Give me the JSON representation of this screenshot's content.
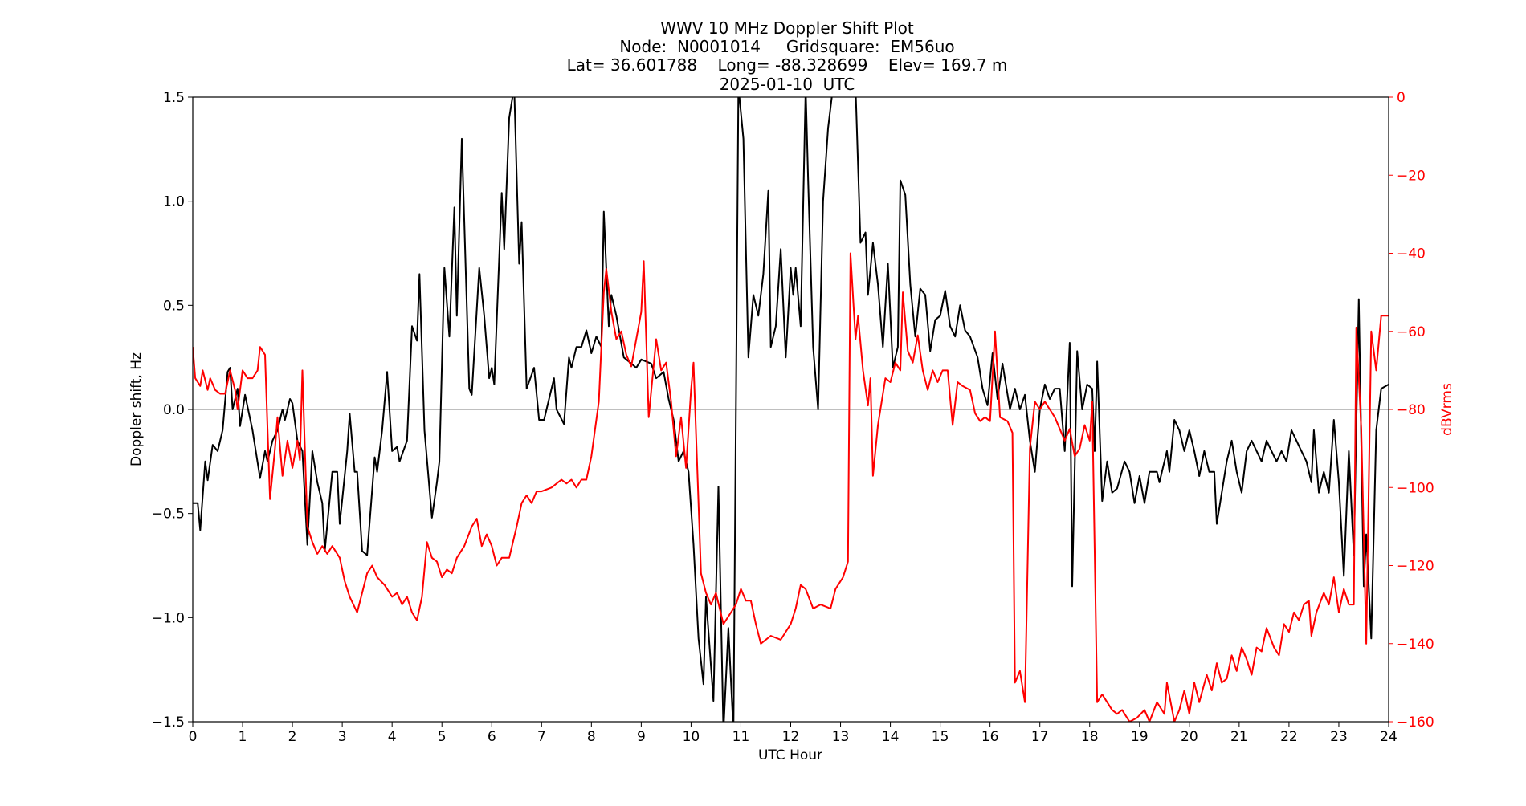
{
  "chart_data": {
    "type": "line",
    "title_lines": [
      "WWV 10 MHz Doppler Shift Plot",
      "Node:  N0001014     Gridsquare:  EM56uo",
      "Lat= 36.601788    Long= -88.328699    Elev= 169.7 m",
      "2025-01-10  UTC"
    ],
    "xlabel": "UTC Hour",
    "ylabel": "Doppler shift, Hz",
    "y2label": "dBVrms",
    "xlim": [
      0,
      24
    ],
    "ylim": [
      -1.5,
      1.5
    ],
    "y2lim": [
      -160,
      0
    ],
    "xticks": [
      "0",
      "1",
      "2",
      "3",
      "4",
      "5",
      "6",
      "7",
      "8",
      "9",
      "10",
      "11",
      "12",
      "13",
      "14",
      "15",
      "16",
      "17",
      "18",
      "19",
      "20",
      "21",
      "22",
      "23",
      "24"
    ],
    "yticks": [
      "1.5",
      "1.0",
      "0.5",
      "0.0",
      "−0.5",
      "−1.0",
      "−1.5"
    ],
    "y2ticks": [
      "0",
      "−20",
      "−40",
      "−60",
      "−80",
      "−100",
      "−120",
      "−140",
      "−160"
    ],
    "zero_line": true,
    "grid": false,
    "colors": {
      "doppler": "#000000",
      "power": "#ff0000",
      "zero_line": "#999999"
    },
    "series": [
      {
        "axis": "left",
        "color": "#000000",
        "x": [
          0,
          0.1,
          0.15,
          0.25,
          0.3,
          0.4,
          0.5,
          0.6,
          0.7,
          0.75,
          0.8,
          0.9,
          0.95,
          1.05,
          1.2,
          1.35,
          1.45,
          1.5,
          1.6,
          1.7,
          1.8,
          1.85,
          1.95,
          2.0,
          2.1,
          2.2,
          2.3,
          2.4,
          2.5,
          2.6,
          2.65,
          2.8,
          2.9,
          2.95,
          3.1,
          3.15,
          3.25,
          3.3,
          3.4,
          3.5,
          3.65,
          3.7,
          3.8,
          3.9,
          4.0,
          4.1,
          4.15,
          4.3,
          4.4,
          4.5,
          4.55,
          4.65,
          4.8,
          4.9,
          4.95,
          5.05,
          5.15,
          5.25,
          5.3,
          5.4,
          5.55,
          5.6,
          5.75,
          5.85,
          5.95,
          6.0,
          6.05,
          6.2,
          6.25,
          6.35,
          6.45,
          6.55,
          6.6,
          6.7,
          6.85,
          6.95,
          7.05,
          7.15,
          7.25,
          7.3,
          7.45,
          7.55,
          7.6,
          7.7,
          7.8,
          7.9,
          8.0,
          8.1,
          8.2,
          8.25,
          8.35,
          8.4,
          8.5,
          8.65,
          8.8,
          8.9,
          9.0,
          9.2,
          9.3,
          9.45,
          9.55,
          9.65,
          9.75,
          9.85,
          9.95,
          10.05,
          10.15,
          10.25,
          10.3,
          10.45,
          10.55,
          10.65,
          10.75,
          10.85,
          10.95,
          11.05,
          11.15,
          11.25,
          11.35,
          11.45,
          11.55,
          11.6,
          11.7,
          11.8,
          11.9,
          12.0,
          12.05,
          12.1,
          12.2,
          12.3,
          12.35,
          12.45,
          12.55,
          12.65,
          12.75,
          12.85,
          13.3,
          13.4,
          13.5,
          13.55,
          13.65,
          13.75,
          13.85,
          13.95,
          14.05,
          14.15,
          14.2,
          14.3,
          14.4,
          14.5,
          14.6,
          14.7,
          14.8,
          14.9,
          15.0,
          15.1,
          15.2,
          15.3,
          15.4,
          15.5,
          15.6,
          15.75,
          15.85,
          15.95,
          16.05,
          16.15,
          16.25,
          16.4,
          16.5,
          16.6,
          16.7,
          16.8,
          16.9,
          17.0,
          17.1,
          17.2,
          17.3,
          17.4,
          17.5,
          17.6,
          17.65,
          17.75,
          17.85,
          17.95,
          18.05,
          18.1,
          18.15,
          18.25,
          18.35,
          18.45,
          18.55,
          18.7,
          18.8,
          18.9,
          19.0,
          19.1,
          19.2,
          19.35,
          19.4,
          19.55,
          19.6,
          19.7,
          19.8,
          19.9,
          20.0,
          20.1,
          20.2,
          20.3,
          20.4,
          20.5,
          20.55,
          20.65,
          20.75,
          20.85,
          20.95,
          21.05,
          21.15,
          21.25,
          21.35,
          21.45,
          21.55,
          21.65,
          21.75,
          21.85,
          21.95,
          22.05,
          22.15,
          22.25,
          22.35,
          22.45,
          22.5,
          22.6,
          22.7,
          22.8,
          22.9,
          23.0,
          23.1,
          23.2,
          23.3,
          23.4,
          23.5,
          23.55,
          23.65,
          23.75,
          23.85,
          24.0
        ],
        "values": [
          -0.45,
          -0.45,
          -0.58,
          -0.25,
          -0.34,
          -0.17,
          -0.2,
          -0.1,
          0.18,
          0.2,
          0.0,
          0.1,
          -0.08,
          0.07,
          -0.1,
          -0.33,
          -0.2,
          -0.25,
          -0.15,
          -0.1,
          0.0,
          -0.05,
          0.05,
          0.03,
          -0.15,
          -0.2,
          -0.65,
          -0.2,
          -0.35,
          -0.45,
          -0.68,
          -0.3,
          -0.3,
          -0.55,
          -0.2,
          -0.02,
          -0.3,
          -0.3,
          -0.68,
          -0.7,
          -0.23,
          -0.3,
          -0.1,
          0.18,
          -0.2,
          -0.18,
          -0.25,
          -0.15,
          0.4,
          0.33,
          0.65,
          -0.1,
          -0.52,
          -0.35,
          -0.25,
          0.68,
          0.35,
          0.97,
          0.45,
          1.3,
          0.1,
          0.07,
          0.68,
          0.45,
          0.15,
          0.2,
          0.12,
          1.04,
          0.77,
          1.4,
          1.55,
          0.7,
          0.9,
          0.1,
          0.2,
          -0.05,
          -0.05,
          0.05,
          0.15,
          0.0,
          -0.07,
          0.25,
          0.2,
          0.3,
          0.3,
          0.38,
          0.27,
          0.35,
          0.3,
          0.95,
          0.4,
          0.55,
          0.45,
          0.25,
          0.22,
          0.2,
          0.24,
          0.22,
          0.15,
          0.18,
          0.05,
          -0.05,
          -0.25,
          -0.2,
          -0.3,
          -0.65,
          -1.1,
          -1.32,
          -0.9,
          -1.4,
          -0.37,
          -1.55,
          -1.05,
          -1.55,
          1.55,
          1.3,
          0.25,
          0.55,
          0.45,
          0.65,
          1.05,
          0.3,
          0.4,
          0.77,
          0.25,
          0.68,
          0.55,
          0.68,
          0.4,
          1.55,
          1.1,
          0.3,
          0.0,
          1.0,
          1.35,
          1.55,
          1.55,
          0.8,
          0.85,
          0.55,
          0.8,
          0.6,
          0.3,
          0.7,
          0.2,
          0.3,
          1.1,
          1.03,
          0.6,
          0.35,
          0.58,
          0.55,
          0.28,
          0.43,
          0.45,
          0.57,
          0.4,
          0.35,
          0.5,
          0.38,
          0.35,
          0.25,
          0.1,
          0.02,
          0.27,
          0.05,
          0.22,
          0.0,
          0.1,
          0.0,
          0.07,
          -0.15,
          -0.3,
          0.0,
          0.12,
          0.05,
          0.1,
          0.1,
          -0.2,
          0.32,
          -0.85,
          0.28,
          0.0,
          0.12,
          0.1,
          -0.2,
          0.23,
          -0.44,
          -0.25,
          -0.4,
          -0.38,
          -0.25,
          -0.3,
          -0.45,
          -0.32,
          -0.45,
          -0.3,
          -0.3,
          -0.35,
          -0.2,
          -0.3,
          -0.05,
          -0.1,
          -0.2,
          -0.1,
          -0.2,
          -0.32,
          -0.2,
          -0.3,
          -0.3,
          -0.55,
          -0.4,
          -0.25,
          -0.15,
          -0.3,
          -0.4,
          -0.2,
          -0.15,
          -0.2,
          -0.25,
          -0.15,
          -0.2,
          -0.25,
          -0.2,
          -0.25,
          -0.1,
          -0.15,
          -0.2,
          -0.25,
          -0.35,
          -0.1,
          -0.4,
          -0.3,
          -0.4,
          -0.05,
          -0.35,
          -0.8,
          -0.2,
          -0.7,
          0.53,
          -0.85,
          -0.6,
          -1.1,
          -0.1,
          0.1,
          0.12
        ]
      },
      {
        "axis": "right",
        "color": "#ff0000",
        "x": [
          0,
          0.05,
          0.15,
          0.2,
          0.3,
          0.35,
          0.45,
          0.55,
          0.65,
          0.75,
          0.85,
          0.9,
          1.0,
          1.1,
          1.2,
          1.3,
          1.35,
          1.45,
          1.5,
          1.55,
          1.65,
          1.7,
          1.8,
          1.9,
          2.0,
          2.1,
          2.15,
          2.2,
          2.3,
          2.4,
          2.5,
          2.6,
          2.7,
          2.8,
          2.95,
          3.05,
          3.15,
          3.3,
          3.5,
          3.6,
          3.7,
          3.85,
          4.0,
          4.1,
          4.2,
          4.3,
          4.4,
          4.5,
          4.6,
          4.7,
          4.8,
          4.9,
          5.0,
          5.1,
          5.2,
          5.3,
          5.45,
          5.6,
          5.7,
          5.8,
          5.9,
          6.0,
          6.1,
          6.2,
          6.35,
          6.5,
          6.6,
          6.7,
          6.8,
          6.9,
          7.0,
          7.2,
          7.4,
          7.5,
          7.6,
          7.7,
          7.8,
          7.9,
          8.0,
          8.15,
          8.25,
          8.3,
          8.4,
          8.5,
          8.6,
          8.7,
          8.8,
          8.9,
          9.0,
          9.05,
          9.15,
          9.3,
          9.4,
          9.5,
          9.6,
          9.7,
          9.8,
          9.9,
          10.0,
          10.05,
          10.2,
          10.3,
          10.4,
          10.5,
          10.65,
          10.8,
          10.9,
          11.0,
          11.1,
          11.2,
          11.3,
          11.4,
          11.6,
          11.8,
          12.0,
          12.1,
          12.2,
          12.3,
          12.45,
          12.6,
          12.8,
          12.9,
          13.05,
          13.15,
          13.2,
          13.3,
          13.35,
          13.45,
          13.55,
          13.6,
          13.65,
          13.75,
          13.9,
          14.0,
          14.1,
          14.2,
          14.25,
          14.35,
          14.45,
          14.55,
          14.65,
          14.75,
          14.85,
          14.95,
          15.05,
          15.15,
          15.25,
          15.35,
          15.45,
          15.6,
          15.7,
          15.8,
          15.9,
          16.0,
          16.1,
          16.2,
          16.35,
          16.45,
          16.5,
          16.6,
          16.7,
          16.8,
          16.9,
          17.0,
          17.1,
          17.2,
          17.3,
          17.4,
          17.5,
          17.6,
          17.7,
          17.8,
          17.9,
          18.0,
          18.05,
          18.15,
          18.25,
          18.35,
          18.45,
          18.55,
          18.65,
          18.8,
          18.95,
          19.1,
          19.2,
          19.35,
          19.5,
          19.55,
          19.7,
          19.8,
          19.9,
          20.0,
          20.1,
          20.2,
          20.35,
          20.45,
          20.55,
          20.65,
          20.75,
          20.85,
          20.95,
          21.05,
          21.15,
          21.25,
          21.35,
          21.45,
          21.55,
          21.7,
          21.8,
          21.9,
          22.0,
          22.1,
          22.2,
          22.3,
          22.4,
          22.45,
          22.55,
          22.7,
          22.8,
          22.9,
          23.0,
          23.1,
          23.2,
          23.3,
          23.35,
          23.45,
          23.55,
          23.65,
          23.75,
          23.85,
          24.0
        ],
        "values": [
          -64,
          -72,
          -74,
          -70,
          -75,
          -72,
          -75,
          -76,
          -76,
          -70,
          -75,
          -80,
          -70,
          -72,
          -72,
          -70,
          -64,
          -66,
          -85,
          -103,
          -90,
          -82,
          -97,
          -88,
          -95,
          -88,
          -93,
          -70,
          -110,
          -114,
          -117,
          -115,
          -117,
          -115,
          -118,
          -124,
          -128,
          -132,
          -122,
          -120,
          -123,
          -125,
          -128,
          -127,
          -130,
          -128,
          -132,
          -134,
          -128,
          -114,
          -118,
          -119,
          -123,
          -121,
          -122,
          -118,
          -115,
          -110,
          -108,
          -115,
          -112,
          -115,
          -120,
          -118,
          -118,
          -110,
          -104,
          -102,
          -104,
          -101,
          -101,
          -100,
          -98,
          -99,
          -98,
          -100,
          -98,
          -98,
          -92,
          -78,
          -50,
          -44,
          -55,
          -62,
          -60,
          -66,
          -69,
          -62,
          -55,
          -42,
          -82,
          -62,
          -70,
          -68,
          -78,
          -92,
          -82,
          -95,
          -75,
          -68,
          -122,
          -127,
          -130,
          -127,
          -135,
          -132,
          -130,
          -126,
          -129,
          -129,
          -135,
          -140,
          -138,
          -139,
          -135,
          -131,
          -125,
          -126,
          -131,
          -130,
          -131,
          -126,
          -123,
          -119,
          -40,
          -62,
          -56,
          -70,
          -79,
          -72,
          -97,
          -84,
          -72,
          -73,
          -68,
          -70,
          -50,
          -65,
          -68,
          -61,
          -70,
          -75,
          -70,
          -73,
          -70,
          -70,
          -84,
          -73,
          -74,
          -75,
          -81,
          -83,
          -82,
          -83,
          -60,
          -82,
          -83,
          -86,
          -150,
          -147,
          -155,
          -90,
          -78,
          -80,
          -78,
          -80,
          -82,
          -85,
          -88,
          -85,
          -92,
          -90,
          -84,
          -88,
          -78,
          -155,
          -153,
          -155,
          -157,
          -158,
          -157,
          -160,
          -159,
          -157,
          -160,
          -155,
          -158,
          -150,
          -160,
          -157,
          -152,
          -158,
          -150,
          -155,
          -148,
          -152,
          -145,
          -150,
          -149,
          -143,
          -147,
          -141,
          -144,
          -148,
          -141,
          -142,
          -136,
          -141,
          -143,
          -135,
          -137,
          -132,
          -134,
          -130,
          -129,
          -138,
          -132,
          -127,
          -130,
          -123,
          -132,
          -126,
          -130,
          -130,
          -59,
          -85,
          -140,
          -60,
          -70,
          -56,
          -56
        ]
      }
    ]
  }
}
